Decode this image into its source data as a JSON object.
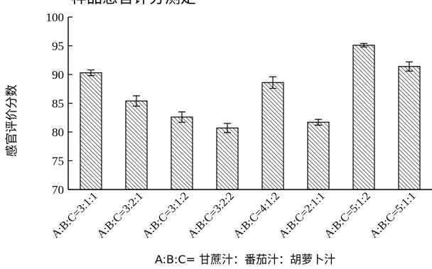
{
  "top_caption_fragment": "样品感官评分测定",
  "chart_data": {
    "type": "bar",
    "categories": [
      "A:B:C=3:1:1",
      "A:B:C=3:2:1",
      "A:B:C=3:1:2",
      "A:B:C=3:2:2",
      "A:B:C=4:1:2",
      "A:B:C=2:1:1",
      "A:B:C=5:1:2",
      "A:B:C=5:1:1"
    ],
    "values": [
      90.3,
      85.4,
      82.6,
      80.7,
      88.6,
      81.7,
      95.1,
      91.4
    ],
    "errors": [
      0.5,
      0.9,
      0.9,
      0.8,
      1.0,
      0.5,
      0.3,
      0.8
    ],
    "ylabel": "感官评价分数",
    "xlabel": "",
    "ylim": [
      70,
      100
    ],
    "yticks": [
      70,
      75,
      80,
      85,
      90,
      95,
      100
    ],
    "footnote": "A:B:C= 甘蔗汁：番茄汁：胡萝卜汁",
    "grid": false,
    "bar_fill": "diagonal-hatch",
    "bar_color": "#000000"
  }
}
